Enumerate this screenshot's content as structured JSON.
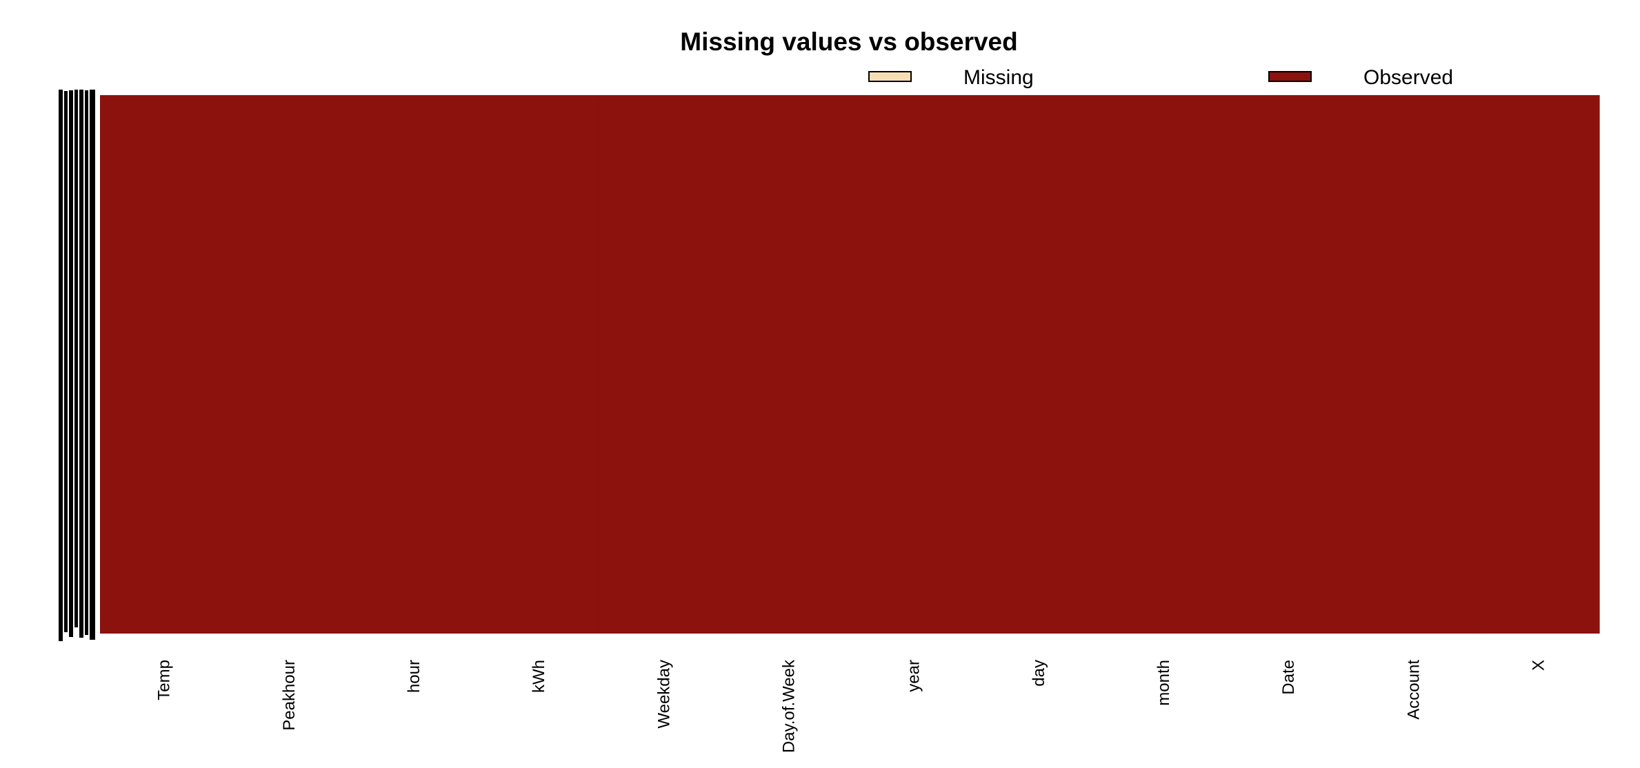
{
  "chart_data": {
    "type": "heatmap",
    "title": "Missing values vs observed",
    "xlabel": "",
    "ylabel": "",
    "categories": [
      "Temp",
      "Peakhour",
      "hour",
      "kWh",
      "Weekday",
      "Day.of.Week",
      "year",
      "day",
      "month",
      "Date",
      "Account",
      "X"
    ],
    "missing_counts": [
      0,
      0,
      0,
      0,
      0,
      0,
      0,
      0,
      0,
      0,
      0,
      0
    ],
    "observed_fraction": [
      1,
      1,
      1,
      1,
      1,
      1,
      1,
      1,
      1,
      1,
      1,
      1
    ],
    "legend": {
      "placement": "top-right",
      "items": [
        {
          "label": "Missing",
          "color": "#F5DEB3"
        },
        {
          "label": "Observed",
          "color": "#8B120D"
        }
      ]
    },
    "grid": false
  },
  "colors": {
    "missing": "#F5DEB3",
    "observed": "#8B120D",
    "text": "#000000",
    "background": "#FFFFFF"
  }
}
